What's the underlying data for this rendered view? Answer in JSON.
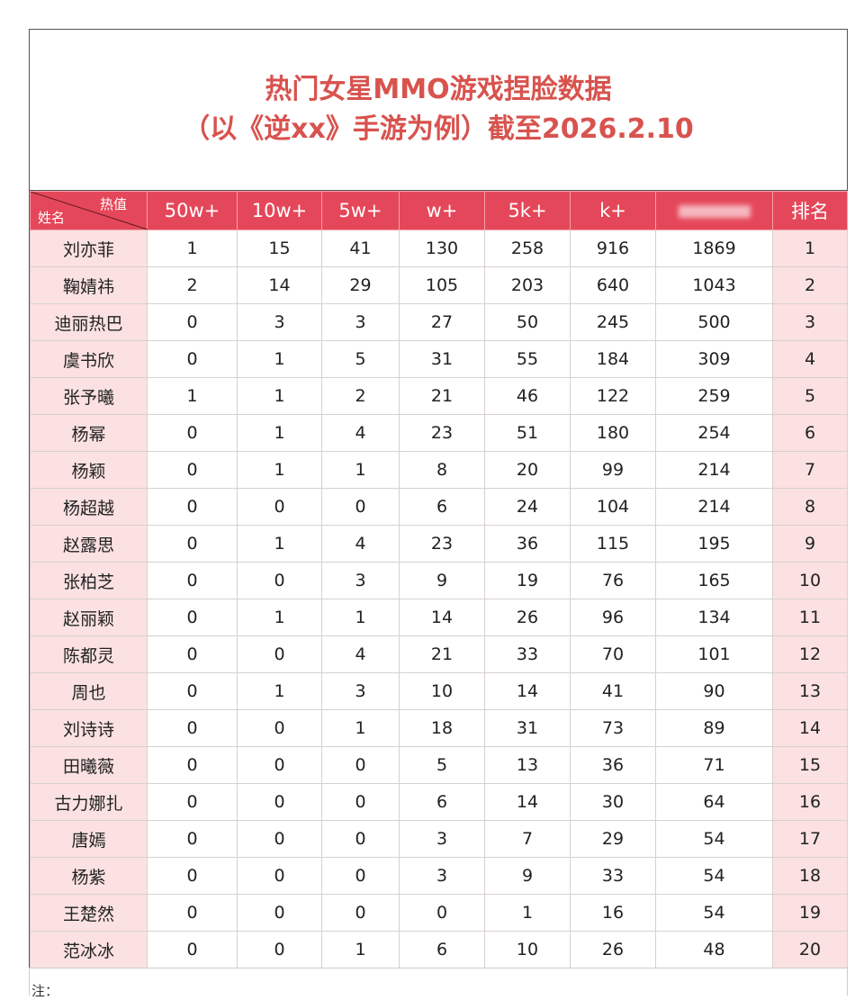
{
  "title": {
    "line1": "热门女星MMO游戏捏脸数据",
    "line2": "（以《逆xx》手游为例）截至2026.2.10"
  },
  "header": {
    "corner_top": "热值",
    "corner_bottom": "姓名",
    "columns": [
      "50w+",
      "10w+",
      "5w+",
      "w+",
      "5k+",
      "k+",
      "",
      "排名"
    ]
  },
  "colors": {
    "header": "#e5475a",
    "title": "#d8534e",
    "name_bg": "#fbe1e1"
  },
  "rows": [
    [
      "刘亦菲",
      "1",
      "15",
      "41",
      "130",
      "258",
      "916",
      "1869",
      "1"
    ],
    [
      "鞠婧祎",
      "2",
      "14",
      "29",
      "105",
      "203",
      "640",
      "1043",
      "2"
    ],
    [
      "迪丽热巴",
      "0",
      "3",
      "3",
      "27",
      "50",
      "245",
      "500",
      "3"
    ],
    [
      "虞书欣",
      "0",
      "1",
      "5",
      "31",
      "55",
      "184",
      "309",
      "4"
    ],
    [
      "张予曦",
      "1",
      "1",
      "2",
      "21",
      "46",
      "122",
      "259",
      "5"
    ],
    [
      "杨幂",
      "0",
      "1",
      "4",
      "23",
      "51",
      "180",
      "254",
      "6"
    ],
    [
      "杨颖",
      "0",
      "1",
      "1",
      "8",
      "20",
      "99",
      "214",
      "7"
    ],
    [
      "杨超越",
      "0",
      "0",
      "0",
      "6",
      "24",
      "104",
      "214",
      "8"
    ],
    [
      "赵露思",
      "0",
      "1",
      "4",
      "23",
      "36",
      "115",
      "195",
      "9"
    ],
    [
      "张柏芝",
      "0",
      "0",
      "3",
      "9",
      "19",
      "76",
      "165",
      "10"
    ],
    [
      "赵丽颖",
      "0",
      "1",
      "1",
      "14",
      "26",
      "96",
      "134",
      "11"
    ],
    [
      "陈都灵",
      "0",
      "0",
      "4",
      "21",
      "33",
      "70",
      "101",
      "12"
    ],
    [
      "周也",
      "0",
      "1",
      "3",
      "10",
      "14",
      "41",
      "90",
      "13"
    ],
    [
      "刘诗诗",
      "0",
      "0",
      "1",
      "18",
      "31",
      "73",
      "89",
      "14"
    ],
    [
      "田曦薇",
      "0",
      "0",
      "0",
      "5",
      "13",
      "36",
      "71",
      "15"
    ],
    [
      "古力娜扎",
      "0",
      "0",
      "0",
      "6",
      "14",
      "30",
      "64",
      "16"
    ],
    [
      "唐嫣",
      "0",
      "0",
      "0",
      "3",
      "7",
      "29",
      "54",
      "17"
    ],
    [
      "杨紫",
      "0",
      "0",
      "0",
      "3",
      "9",
      "33",
      "54",
      "18"
    ],
    [
      "王楚然",
      "0",
      "0",
      "0",
      "0",
      "1",
      "16",
      "54",
      "19"
    ],
    [
      "范冰冰",
      "0",
      "0",
      "1",
      "6",
      "10",
      "26",
      "48",
      "20"
    ]
  ],
  "note": "注："
}
